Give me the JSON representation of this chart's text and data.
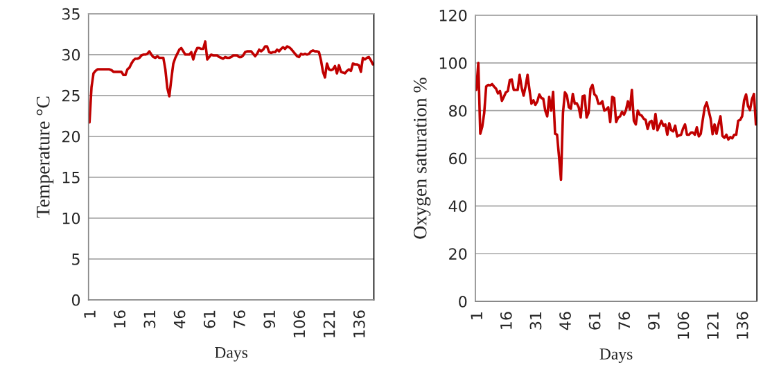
{
  "chart_data": [
    {
      "type": "line",
      "xlabel": "Days",
      "ylabel": "Temperature °C",
      "ylim": [
        0,
        35
      ],
      "yticks": [
        0,
        5,
        10,
        15,
        20,
        25,
        30,
        35
      ],
      "grid": "y",
      "categories": [
        "1",
        null,
        null,
        null,
        null,
        null,
        null,
        null,
        null,
        null,
        null,
        null,
        null,
        null,
        null,
        "16",
        null,
        null,
        null,
        null,
        null,
        null,
        null,
        null,
        null,
        null,
        null,
        null,
        null,
        null,
        "31",
        null,
        null,
        null,
        null,
        null,
        null,
        null,
        null,
        null,
        null,
        null,
        null,
        null,
        null,
        "46",
        null,
        null,
        null,
        null,
        null,
        null,
        null,
        null,
        null,
        null,
        null,
        null,
        null,
        null,
        "61",
        null,
        null,
        null,
        null,
        null,
        null,
        null,
        null,
        null,
        null,
        null,
        null,
        null,
        null,
        "76",
        null,
        null,
        null,
        null,
        null,
        null,
        null,
        null,
        null,
        null,
        null,
        null,
        null,
        null,
        "91",
        null,
        null,
        null,
        null,
        null,
        null,
        null,
        null,
        null,
        null,
        null,
        null,
        null,
        null,
        "106",
        null,
        null,
        null,
        null,
        null,
        null,
        null,
        null,
        null,
        null,
        null,
        null,
        null,
        null,
        "121",
        null,
        null,
        null,
        null,
        null,
        null,
        null,
        null,
        null,
        null,
        null,
        null,
        null,
        null,
        "136",
        null,
        null,
        null,
        null,
        null,
        null,
        null
      ],
      "series": [
        {
          "color": "#c00000",
          "values": [
            21.7,
            26,
            27.7,
            28,
            28.2,
            28.2,
            28.2,
            28.2,
            28.2,
            28.2,
            28.2,
            28.1,
            27.9,
            27.9,
            27.9,
            27.9,
            27.9,
            27.5,
            27.5,
            28.2,
            28.4,
            28.9,
            29.3,
            29.5,
            29.5,
            29.6,
            29.9,
            30,
            30,
            30.1,
            30.4,
            30,
            29.7,
            29.6,
            29.8,
            29.6,
            29.6,
            29.6,
            28.2,
            25.9,
            24.9,
            27,
            28.9,
            29.6,
            30.1,
            30.6,
            30.8,
            30.4,
            30,
            30,
            30,
            30.3,
            29.4,
            30.3,
            30.8,
            30.8,
            30.7,
            30.7,
            31.6,
            29.4,
            29.7,
            30,
            29.9,
            29.9,
            29.9,
            29.7,
            29.6,
            29.5,
            29.7,
            29.6,
            29.6,
            29.7,
            29.9,
            29.9,
            29.9,
            29.7,
            29.7,
            29.9,
            30.3,
            30.4,
            30.4,
            30.4,
            30.1,
            29.8,
            30.1,
            30.6,
            30.4,
            30.6,
            31,
            31,
            30.3,
            30.2,
            30.3,
            30.3,
            30.6,
            30.4,
            30.7,
            30.9,
            30.7,
            31,
            30.9,
            30.7,
            30.4,
            30.1,
            29.8,
            29.7,
            30.1,
            30,
            30.1,
            30,
            30.1,
            30.4,
            30.5,
            30.4,
            30.4,
            30.3,
            29.3,
            27.9,
            27.2,
            28.9,
            28.2,
            28.1,
            28.2,
            28.6,
            27.7,
            28.7,
            27.9,
            27.8,
            27.7,
            28,
            28.2,
            28,
            28.9,
            28.8,
            28.8,
            28.7,
            27.9,
            29.6,
            29.4,
            29.6,
            29.7,
            29.3,
            28.8
          ]
        }
      ]
    },
    {
      "type": "line",
      "xlabel": "Days",
      "ylabel": "Oxygen saturation %",
      "ylim": [
        0,
        120
      ],
      "yticks": [
        0,
        20,
        40,
        60,
        80,
        100,
        120
      ],
      "grid": "y",
      "categories": [
        "1",
        null,
        null,
        null,
        null,
        null,
        null,
        null,
        null,
        null,
        null,
        null,
        null,
        null,
        null,
        "16",
        null,
        null,
        null,
        null,
        null,
        null,
        null,
        null,
        null,
        null,
        null,
        null,
        null,
        null,
        "31",
        null,
        null,
        null,
        null,
        null,
        null,
        null,
        null,
        null,
        null,
        null,
        null,
        null,
        null,
        "46",
        null,
        null,
        null,
        null,
        null,
        null,
        null,
        null,
        null,
        null,
        null,
        null,
        null,
        null,
        "61",
        null,
        null,
        null,
        null,
        null,
        null,
        null,
        null,
        null,
        null,
        null,
        null,
        null,
        null,
        "76",
        null,
        null,
        null,
        null,
        null,
        null,
        null,
        null,
        null,
        null,
        null,
        null,
        null,
        null,
        "91",
        null,
        null,
        null,
        null,
        null,
        null,
        null,
        null,
        null,
        null,
        null,
        null,
        null,
        null,
        "106",
        null,
        null,
        null,
        null,
        null,
        null,
        null,
        null,
        null,
        null,
        null,
        null,
        null,
        null,
        "121",
        null,
        null,
        null,
        null,
        null,
        null,
        null,
        null,
        null,
        null,
        null,
        null,
        null,
        null,
        "136",
        null,
        null,
        null,
        null,
        null,
        null,
        null
      ],
      "series": [
        {
          "color": "#c00000",
          "values": [
            88.7,
            100,
            70.3,
            73.2,
            79,
            90.1,
            90.8,
            90.6,
            91.1,
            90.1,
            89.2,
            87.2,
            88.2,
            84.1,
            85.8,
            87.7,
            88.2,
            92.8,
            93,
            88.7,
            88.7,
            88.7,
            95,
            89.7,
            86.3,
            90.1,
            95,
            88.7,
            82.9,
            84.3,
            82.4,
            83.9,
            86.8,
            85.3,
            85,
            80,
            77.6,
            85.8,
            80,
            87.9,
            70.3,
            69.9,
            60.7,
            51,
            79,
            87.7,
            86.3,
            81.4,
            80.8,
            87,
            82.9,
            83.1,
            81.4,
            77.1,
            86,
            86.3,
            77.1,
            79,
            89.2,
            90.8,
            86.8,
            86,
            82.9,
            82.9,
            83.9,
            80,
            80.5,
            81.4,
            75.2,
            85.8,
            85.3,
            75.2,
            77.1,
            77.6,
            79.5,
            78.3,
            80.2,
            83.9,
            80.5,
            88.7,
            75.7,
            74.2,
            80,
            78.3,
            77.9,
            76.6,
            76.1,
            72.3,
            75.2,
            75.7,
            72.3,
            78.6,
            71.8,
            73.7,
            75.7,
            73.7,
            74.2,
            69.9,
            74.7,
            71.8,
            71.3,
            73.7,
            69.2,
            69.6,
            69.9,
            72.5,
            74.2,
            69.9,
            69.9,
            70.8,
            70.8,
            69.9,
            73,
            69.2,
            70.3,
            76.1,
            81.4,
            83.4,
            80,
            76.6,
            70.1,
            74.2,
            70.3,
            74.2,
            77.6,
            69.4,
            68.6,
            69.9,
            67.9,
            68.9,
            68.4,
            69.9,
            69.9,
            75.7,
            76.1,
            77.6,
            84.3,
            86.8,
            81.9,
            80.2,
            84.8,
            87,
            74.2
          ]
        }
      ]
    }
  ]
}
